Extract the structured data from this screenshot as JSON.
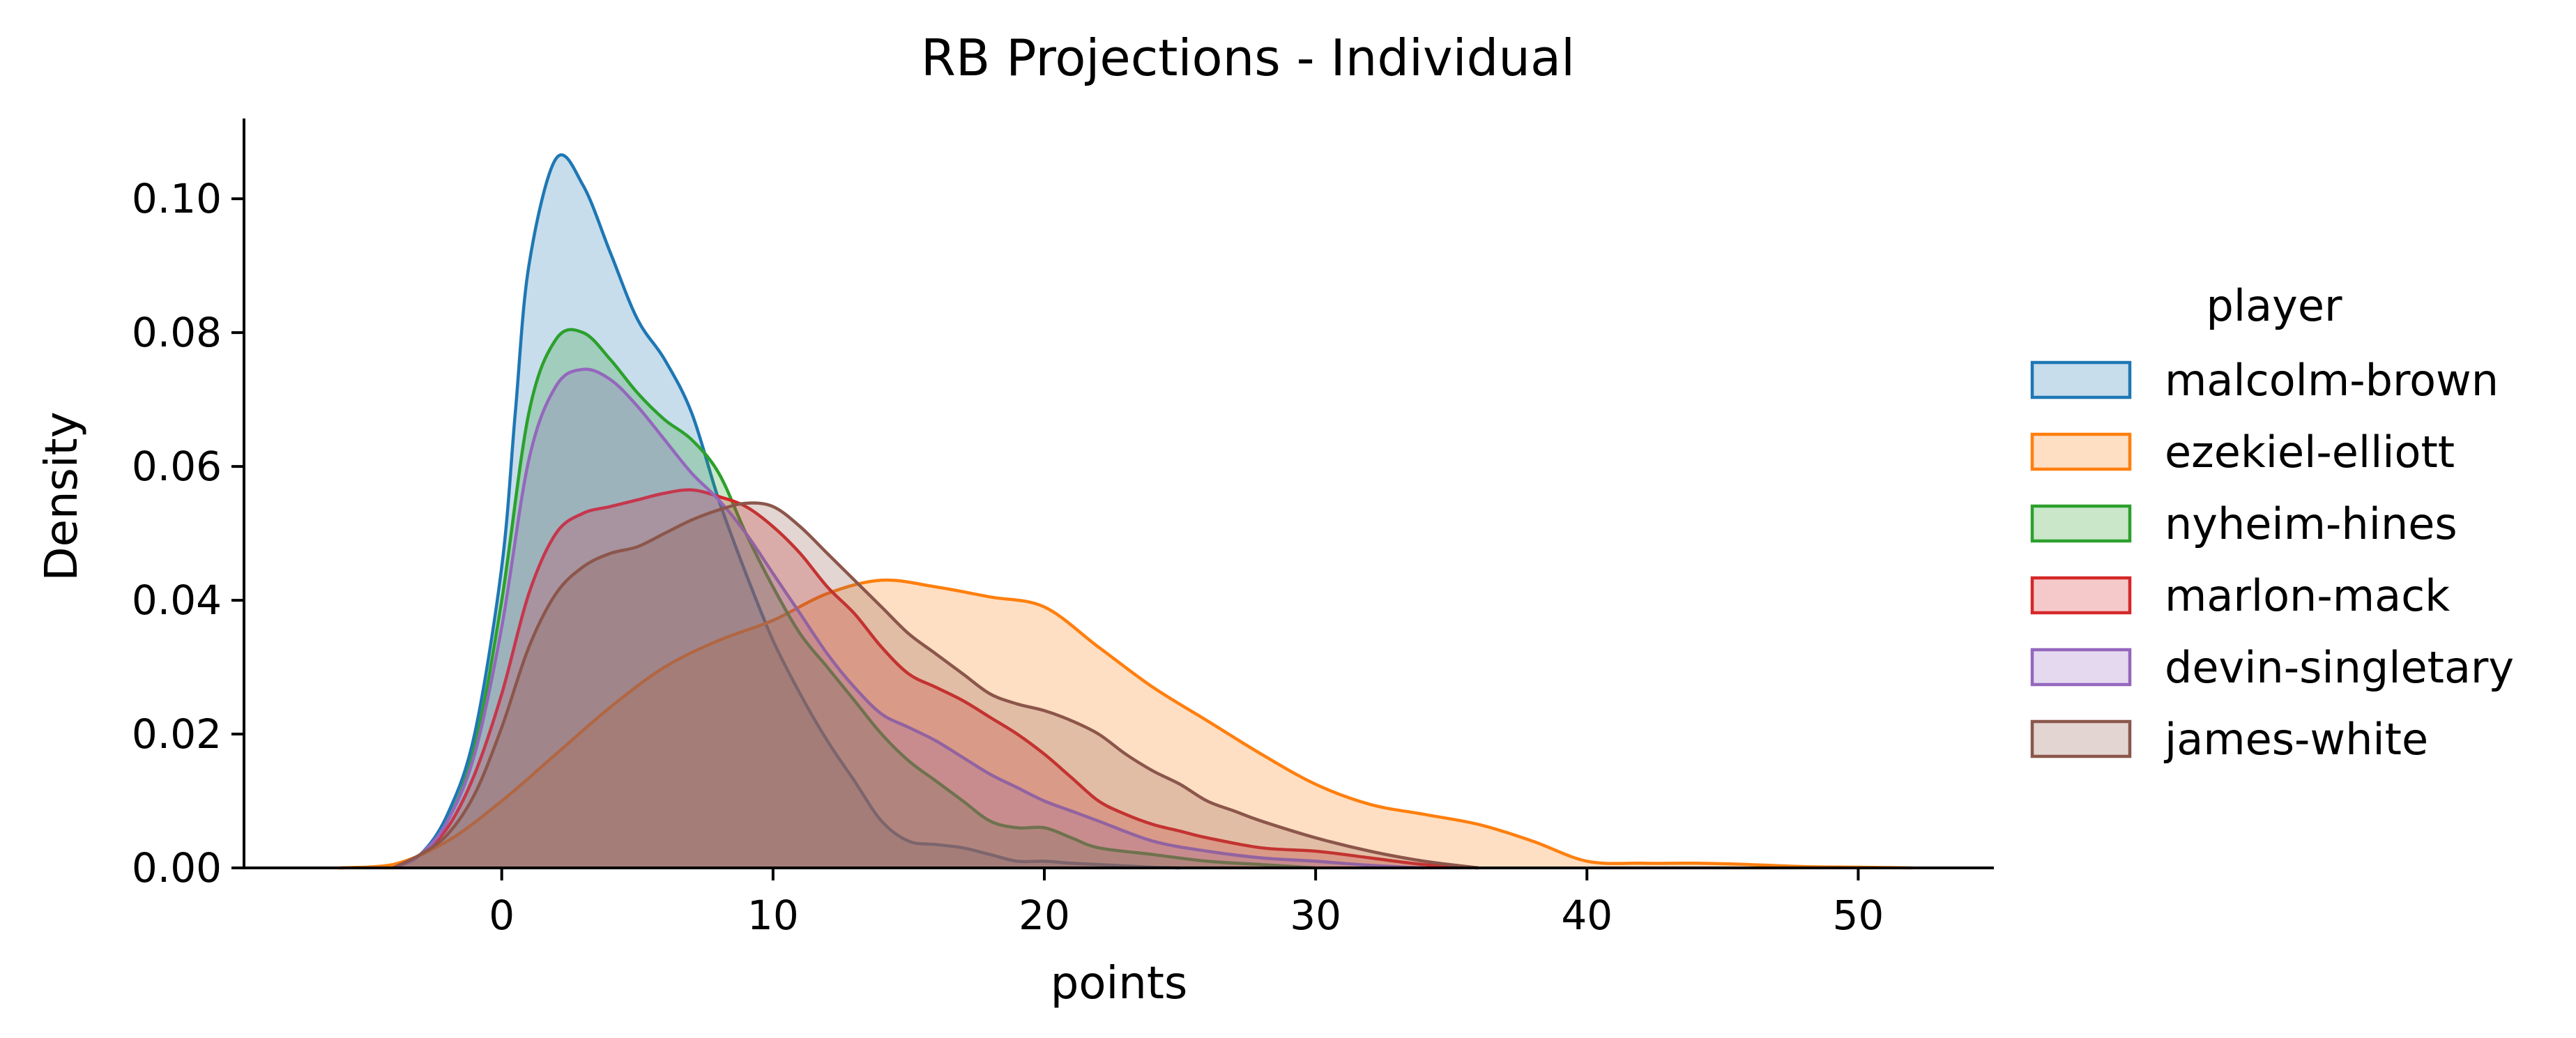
{
  "chart_data": {
    "type": "area",
    "title": "RB Projections - Individual",
    "xlabel": "points",
    "ylabel": "Density",
    "xlim": [
      -9.5,
      55
    ],
    "ylim": [
      0,
      0.112
    ],
    "xticks": [
      0,
      10,
      20,
      30,
      40,
      50
    ],
    "yticks": [
      0.0,
      0.02,
      0.04,
      0.06,
      0.08,
      0.1
    ],
    "ytick_labels": [
      "0.00",
      "0.02",
      "0.04",
      "0.06",
      "0.08",
      "0.10"
    ],
    "grid": false,
    "legend": {
      "title": "player",
      "placement": "right"
    },
    "series": [
      {
        "name": "malcolm-brown",
        "color": "#1f77b4",
        "x": [
          -4,
          -3,
          -2,
          -1,
          0,
          0.5,
          1,
          2,
          3,
          4,
          5,
          6,
          7,
          8,
          9,
          10,
          11,
          12,
          13,
          14,
          15,
          16,
          17,
          18,
          19,
          20,
          21,
          22,
          23,
          24,
          25
        ],
        "y": [
          0,
          0.002,
          0.008,
          0.02,
          0.045,
          0.068,
          0.09,
          0.106,
          0.102,
          0.092,
          0.082,
          0.076,
          0.068,
          0.055,
          0.044,
          0.034,
          0.026,
          0.019,
          0.013,
          0.007,
          0.004,
          0.0035,
          0.003,
          0.002,
          0.001,
          0.001,
          0.0007,
          0.0005,
          0.0003,
          0.0001,
          0
        ]
      },
      {
        "name": "ezekiel-elliott",
        "color": "#ff7f0e",
        "x": [
          -6,
          -4,
          -2,
          0,
          2,
          4,
          6,
          8,
          10,
          12,
          14,
          16,
          18,
          20,
          22,
          24,
          26,
          28,
          30,
          32,
          34,
          36,
          38,
          40,
          42,
          44,
          46,
          48,
          50,
          52
        ],
        "y": [
          0,
          0.0005,
          0.004,
          0.01,
          0.017,
          0.024,
          0.03,
          0.034,
          0.037,
          0.041,
          0.043,
          0.042,
          0.0405,
          0.039,
          0.033,
          0.027,
          0.022,
          0.017,
          0.0125,
          0.0095,
          0.008,
          0.0065,
          0.004,
          0.001,
          0.0007,
          0.0007,
          0.0005,
          0.0002,
          0.0001,
          0
        ]
      },
      {
        "name": "nyheim-hines",
        "color": "#2ca02c",
        "x": [
          -4,
          -3,
          -2,
          -1,
          0,
          1,
          2,
          3,
          4,
          5,
          6,
          7,
          8,
          9,
          10,
          11,
          12,
          13,
          14,
          15,
          16,
          17,
          18,
          19,
          20,
          21,
          22,
          24,
          26,
          28,
          30
        ],
        "y": [
          0,
          0.002,
          0.007,
          0.018,
          0.04,
          0.068,
          0.079,
          0.08,
          0.076,
          0.071,
          0.067,
          0.064,
          0.059,
          0.05,
          0.042,
          0.035,
          0.03,
          0.025,
          0.02,
          0.016,
          0.013,
          0.01,
          0.007,
          0.006,
          0.006,
          0.0045,
          0.003,
          0.002,
          0.001,
          0.0005,
          0
        ]
      },
      {
        "name": "marlon-mack",
        "color": "#d62728",
        "x": [
          -4,
          -3,
          -2,
          -1,
          0,
          1,
          2,
          3,
          4,
          5,
          6,
          7,
          8,
          9,
          10,
          11,
          12,
          13,
          14,
          15,
          16,
          17,
          18,
          19,
          20,
          21,
          22,
          23,
          24,
          25,
          26,
          28,
          30,
          32,
          34,
          36
        ],
        "y": [
          0,
          0.002,
          0.006,
          0.014,
          0.026,
          0.041,
          0.05,
          0.053,
          0.054,
          0.055,
          0.056,
          0.0565,
          0.0555,
          0.054,
          0.051,
          0.047,
          0.042,
          0.038,
          0.033,
          0.029,
          0.027,
          0.025,
          0.0225,
          0.02,
          0.017,
          0.0135,
          0.01,
          0.008,
          0.0065,
          0.0055,
          0.0045,
          0.003,
          0.0025,
          0.0015,
          0.0005,
          0
        ]
      },
      {
        "name": "devin-singletary",
        "color": "#9467bd",
        "x": [
          -4,
          -3,
          -2,
          -1,
          0,
          1,
          2,
          3,
          4,
          5,
          6,
          7,
          8,
          9,
          10,
          11,
          12,
          13,
          14,
          15,
          16,
          17,
          18,
          19,
          20,
          21,
          22,
          24,
          26,
          28,
          30,
          32,
          34
        ],
        "y": [
          0,
          0.002,
          0.007,
          0.017,
          0.036,
          0.061,
          0.072,
          0.0745,
          0.073,
          0.069,
          0.064,
          0.059,
          0.055,
          0.05,
          0.044,
          0.038,
          0.032,
          0.027,
          0.023,
          0.021,
          0.019,
          0.0165,
          0.014,
          0.012,
          0.01,
          0.0085,
          0.007,
          0.004,
          0.0025,
          0.0015,
          0.001,
          0.0004,
          0
        ]
      },
      {
        "name": "james-white",
        "color": "#8c564b",
        "x": [
          -4,
          -3,
          -2,
          -1,
          0,
          1,
          2,
          3,
          4,
          5,
          6,
          7,
          8,
          9,
          10,
          11,
          12,
          13,
          14,
          15,
          16,
          17,
          18,
          19,
          20,
          21,
          22,
          23,
          24,
          25,
          26,
          27,
          28,
          30,
          32,
          34,
          36
        ],
        "y": [
          0,
          0.002,
          0.005,
          0.011,
          0.021,
          0.033,
          0.041,
          0.045,
          0.047,
          0.048,
          0.05,
          0.052,
          0.0535,
          0.0545,
          0.054,
          0.051,
          0.047,
          0.043,
          0.039,
          0.035,
          0.032,
          0.029,
          0.026,
          0.0245,
          0.0235,
          0.022,
          0.02,
          0.017,
          0.0145,
          0.0125,
          0.01,
          0.0085,
          0.007,
          0.0045,
          0.0025,
          0.001,
          0
        ]
      }
    ]
  }
}
